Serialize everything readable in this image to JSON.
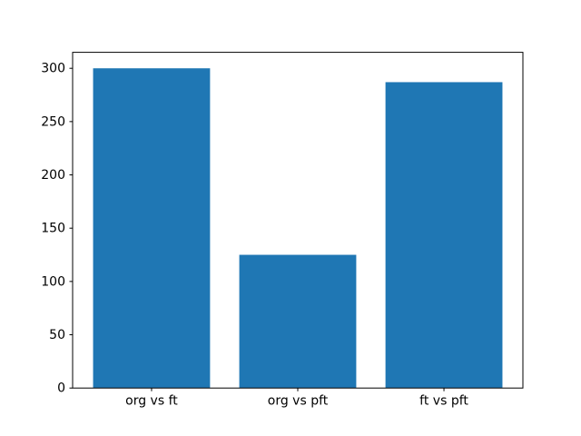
{
  "figure": {
    "background": "#ffffff",
    "spine_color": "#000000",
    "tick_color": "#000000",
    "text_color": "#000000"
  },
  "chart_data": {
    "type": "bar",
    "title": "",
    "xlabel": "",
    "ylabel": "",
    "categories": [
      "org vs ft",
      "org vs pft",
      "ft vs pft"
    ],
    "values": [
      300,
      125,
      287
    ],
    "bar_color": "#1f77b4",
    "bar_width": 0.8,
    "yticks": [
      0,
      50,
      100,
      150,
      200,
      250,
      300
    ],
    "ylim": [
      0,
      315
    ],
    "xlim": [
      -0.54,
      2.54
    ],
    "grid": false,
    "legend": null
  }
}
